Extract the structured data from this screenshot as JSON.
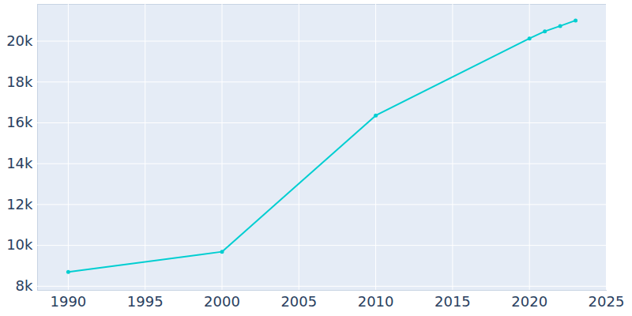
{
  "chart_data": {
    "type": "line",
    "x": [
      1990,
      2000,
      2010,
      2020,
      2021,
      2022,
      2023
    ],
    "values": [
      8700,
      9690,
      16360,
      20130,
      20480,
      20740,
      21010
    ],
    "color": "#00ced1",
    "marker": "circle",
    "line_style": "solid",
    "grid": true,
    "xlim": [
      1988,
      2025
    ],
    "xticks": [
      1990,
      1995,
      2000,
      2005,
      2010,
      2015,
      2020,
      2025
    ],
    "ylim": [
      7800,
      21800
    ],
    "yticks": [
      {
        "value": 8000,
        "label": "8k"
      },
      {
        "value": 10000,
        "label": "10k"
      },
      {
        "value": 12000,
        "label": "12k"
      },
      {
        "value": 14000,
        "label": "14k"
      },
      {
        "value": 16000,
        "label": "16k"
      },
      {
        "value": 18000,
        "label": "18k"
      },
      {
        "value": 20000,
        "label": "20k"
      }
    ]
  }
}
